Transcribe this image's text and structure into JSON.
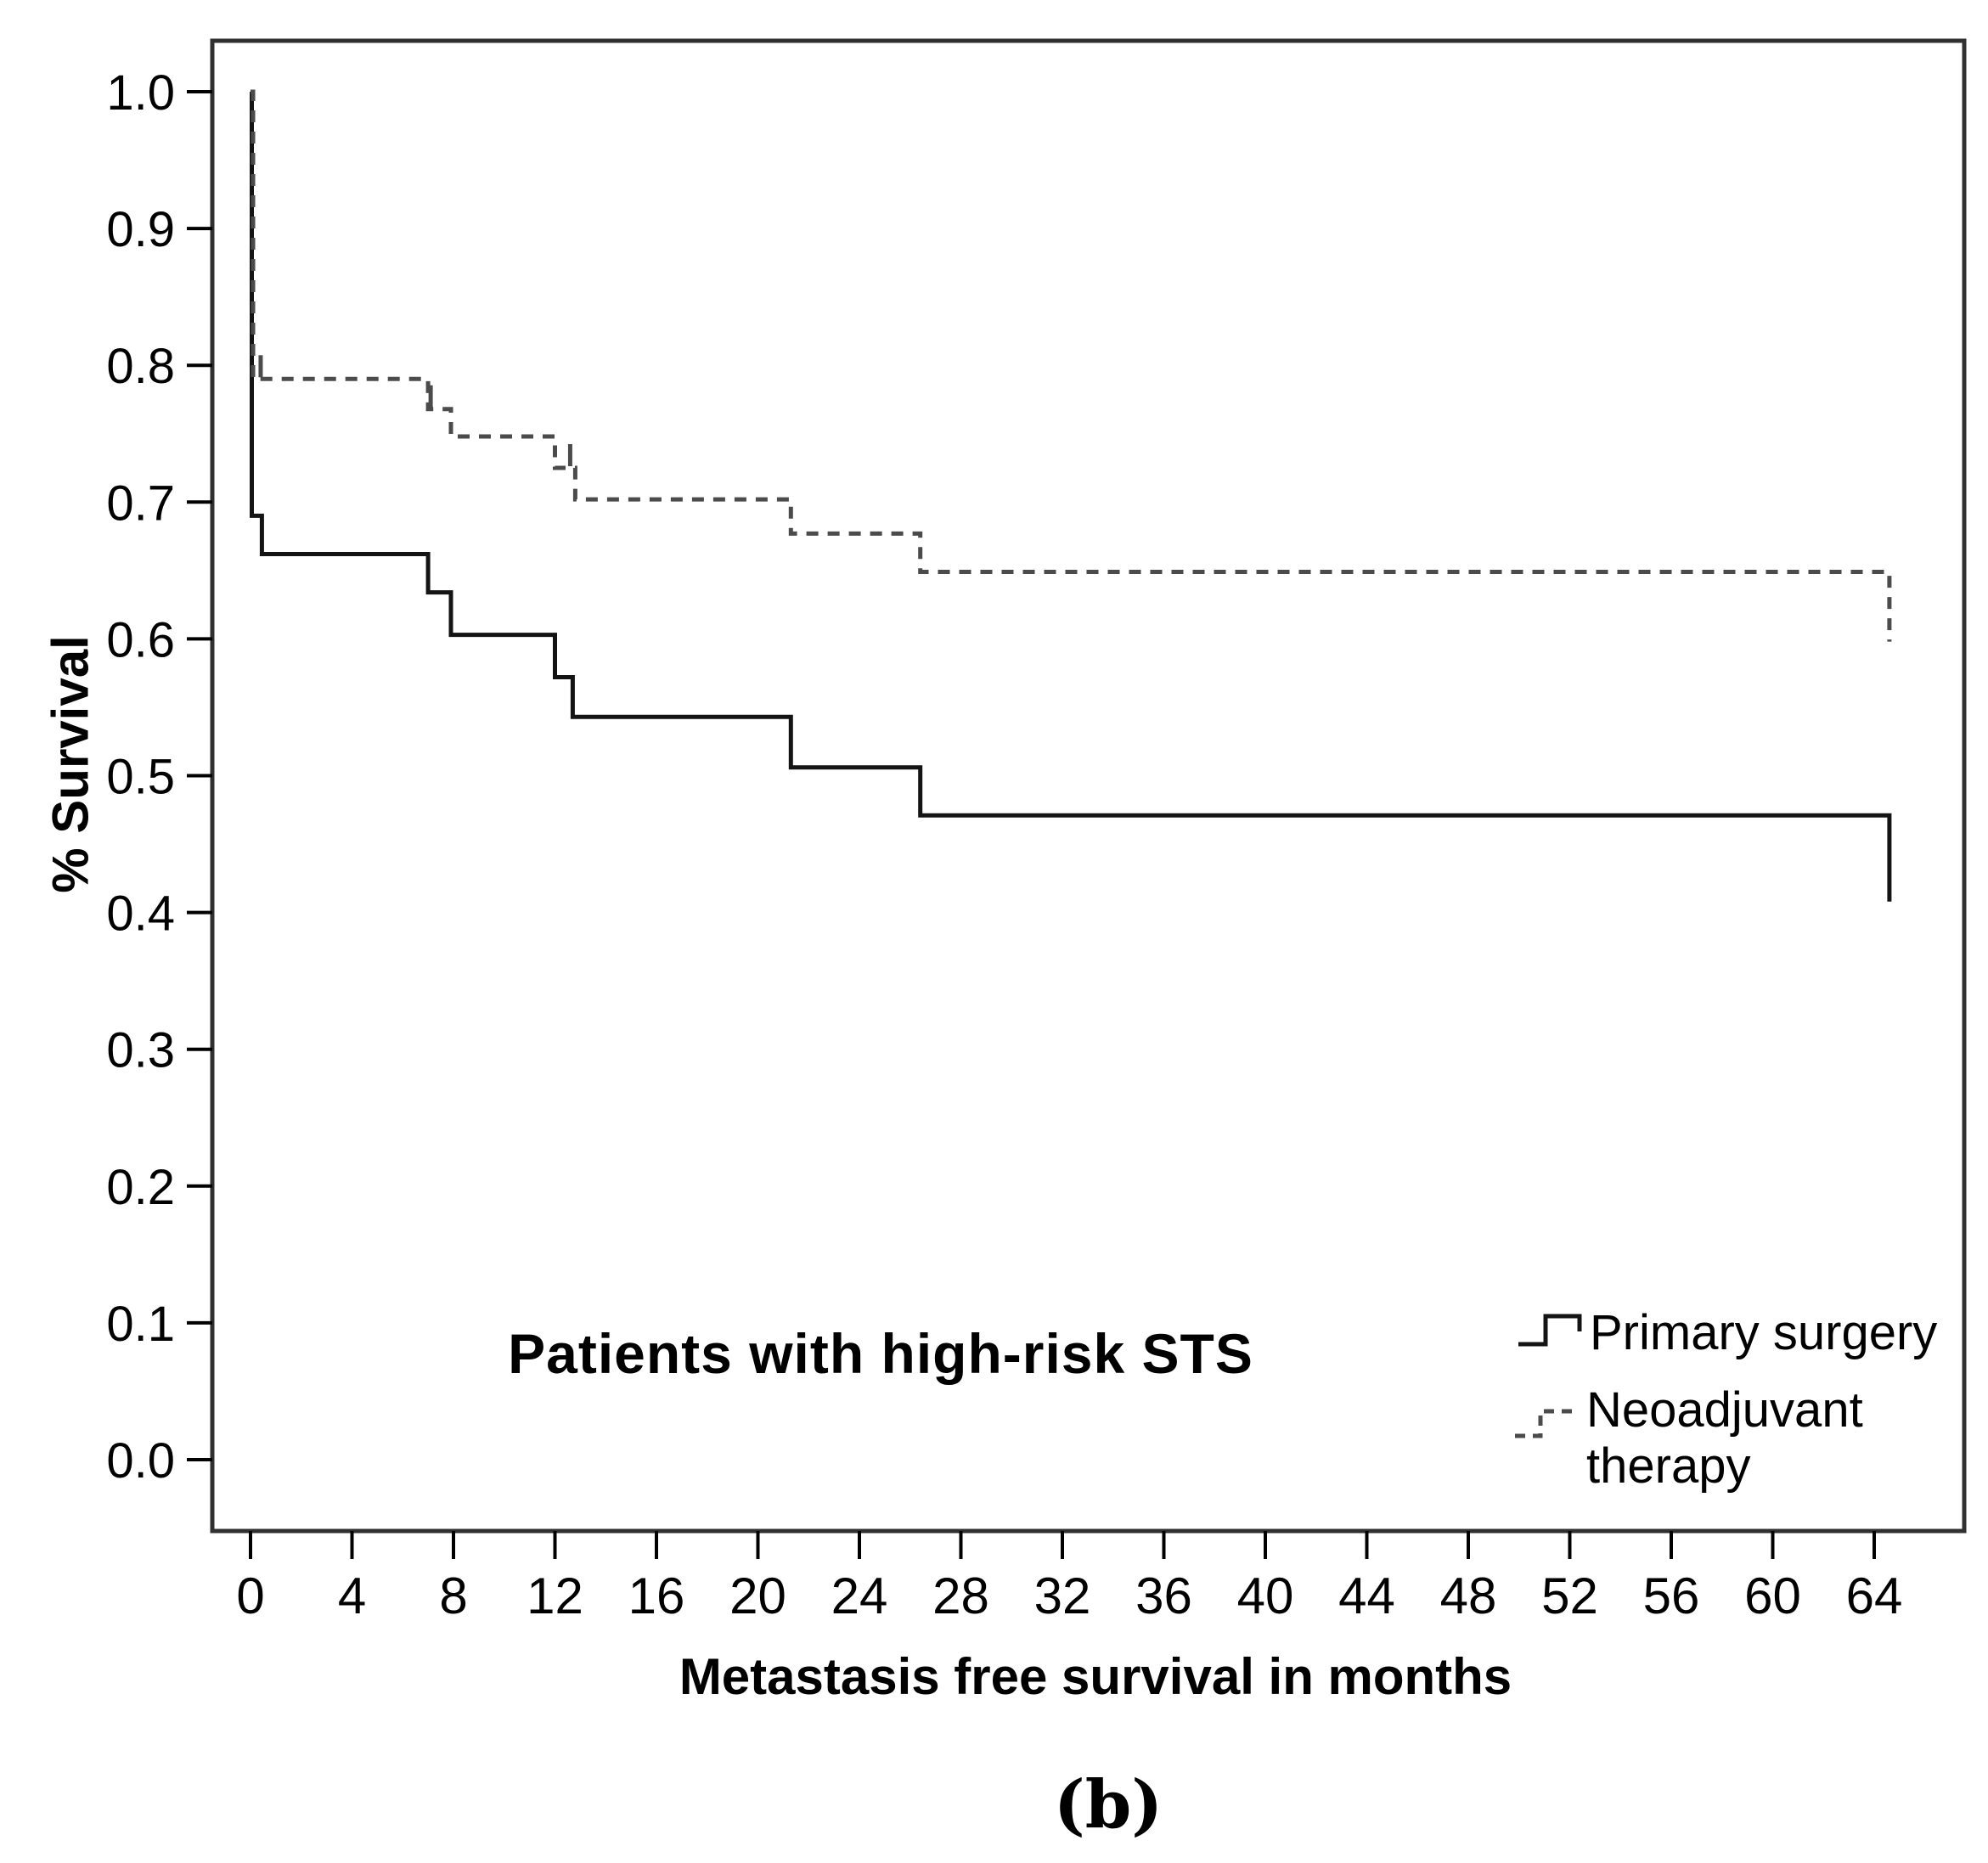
{
  "chart_data": {
    "type": "line",
    "subtype": "kaplan-meier-step",
    "title": "Patients with high-risk STS",
    "xlabel": "Metastasis free survival in months",
    "ylabel": "% Survival",
    "caption": "(b)",
    "grid": false,
    "legend_position": "inside-bottom-right",
    "x_axis": {
      "min": 0,
      "max": 64,
      "ticks": [
        {
          "label": "0",
          "value": 0
        },
        {
          "label": "4",
          "value": 4
        },
        {
          "label": "8",
          "value": 8
        },
        {
          "label": "12",
          "value": 12
        },
        {
          "label": "16",
          "value": 16
        },
        {
          "label": "20",
          "value": 20
        },
        {
          "label": "24",
          "value": 24
        },
        {
          "label": "28",
          "value": 28
        },
        {
          "label": "32",
          "value": 32
        },
        {
          "label": "36",
          "value": 36
        },
        {
          "label": "40",
          "value": 40
        },
        {
          "label": "44",
          "value": 44
        },
        {
          "label": "48",
          "value": 48
        },
        {
          "label": "52",
          "value": 52
        },
        {
          "label": "56",
          "value": 56
        },
        {
          "label": "60",
          "value": 60
        },
        {
          "label": "64",
          "value": 64
        }
      ]
    },
    "y_axis": {
      "min": 0.0,
      "max": 1.0,
      "ticks": [
        {
          "label": "1.0",
          "value": 1.0
        },
        {
          "label": "0.9",
          "value": 0.9
        },
        {
          "label": "0.8",
          "value": 0.8
        },
        {
          "label": "0.7",
          "value": 0.7
        },
        {
          "label": "0.6",
          "value": 0.6
        },
        {
          "label": "0.5",
          "value": 0.5
        },
        {
          "label": "0.4",
          "value": 0.4
        },
        {
          "label": "0.3",
          "value": 0.3
        },
        {
          "label": "0.2",
          "value": 0.2
        },
        {
          "label": "0.1",
          "value": 0.1
        },
        {
          "label": "0.0",
          "value": 0.0
        }
      ]
    },
    "series": [
      {
        "name": "Primary surgery",
        "line_style": "solid",
        "color": "#141414",
        "points": [
          [
            0,
            1.0
          ],
          [
            0.05,
            0.69
          ],
          [
            0.45,
            0.662
          ],
          [
            7,
            0.634
          ],
          [
            7.9,
            0.603
          ],
          [
            12,
            0.572
          ],
          [
            12.7,
            0.543
          ],
          [
            21.3,
            0.506
          ],
          [
            26.4,
            0.471
          ],
          [
            64.6,
            0.408
          ]
        ],
        "censor_marks": []
      },
      {
        "name": "Neoadjuvant therapy",
        "line_style": "dashed",
        "color": "#4b4b4b",
        "points": [
          [
            0,
            1.0
          ],
          [
            0.1,
            0.79
          ],
          [
            7,
            0.768
          ],
          [
            7.9,
            0.748
          ],
          [
            12,
            0.725
          ],
          [
            12.8,
            0.702
          ],
          [
            21.3,
            0.677
          ],
          [
            26.4,
            0.649
          ],
          [
            64.6,
            0.598
          ]
        ],
        "censor_marks": [
          [
            0.4,
            0.79
          ],
          [
            7.1,
            0.768
          ],
          [
            12.6,
            0.725
          ]
        ]
      }
    ],
    "legend": {
      "items": [
        {
          "line1": "Primary surgery",
          "line2": ""
        },
        {
          "line1": "Neoadjuvant",
          "line2": "therapy"
        }
      ]
    }
  }
}
